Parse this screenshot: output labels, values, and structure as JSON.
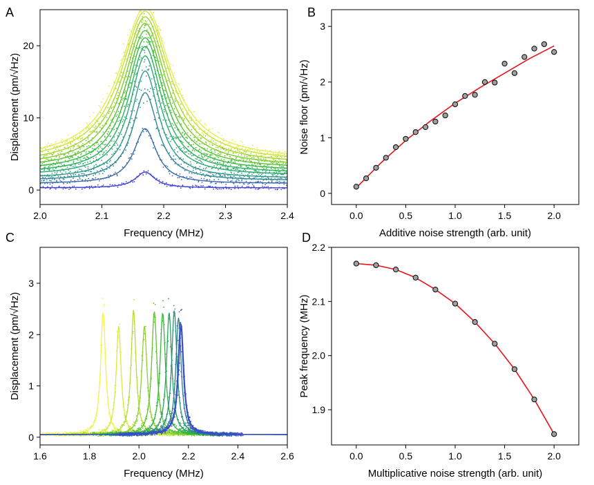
{
  "chart_data": [
    {
      "panel": "A",
      "type": "line",
      "xlabel": "Frequency (MHz)",
      "ylabel": "Displacement (pm/√Hz)",
      "xlim": [
        2.0,
        2.4
      ],
      "ylim": [
        -2,
        25
      ],
      "xticks": [
        2.0,
        2.1,
        2.2,
        2.3,
        2.4
      ],
      "yticks": [
        0,
        10,
        20
      ],
      "center": 2.17,
      "series": [
        {
          "name": "s1",
          "base": 0.3,
          "peak": 2.2,
          "width": 0.019,
          "color": "#3f3fd6"
        },
        {
          "name": "s2",
          "base": 0.9,
          "peak": 7.6,
          "width": 0.022,
          "color": "#3a6aa8"
        },
        {
          "name": "s3",
          "base": 1.3,
          "peak": 12.2,
          "width": 0.025,
          "color": "#33859a"
        },
        {
          "name": "s4",
          "base": 1.6,
          "peak": 14.9,
          "width": 0.027,
          "color": "#2e9a8a"
        },
        {
          "name": "s5",
          "base": 2.0,
          "peak": 16.6,
          "width": 0.03,
          "color": "#2aa874"
        },
        {
          "name": "s6",
          "base": 2.3,
          "peak": 17.6,
          "width": 0.033,
          "color": "#2bb15c"
        },
        {
          "name": "s7",
          "base": 2.6,
          "peak": 18.5,
          "width": 0.036,
          "color": "#39ba43"
        },
        {
          "name": "s8",
          "base": 2.9,
          "peak": 19.2,
          "width": 0.039,
          "color": "#5ac232"
        },
        {
          "name": "s9",
          "base": 3.2,
          "peak": 19.9,
          "width": 0.042,
          "color": "#7fcb2c"
        },
        {
          "name": "s10",
          "base": 3.5,
          "peak": 20.5,
          "width": 0.045,
          "color": "#a3d62c"
        },
        {
          "name": "s11",
          "base": 3.8,
          "peak": 21.0,
          "width": 0.048,
          "color": "#c8e33a"
        },
        {
          "name": "s12",
          "base": 4.1,
          "peak": 21.3,
          "width": 0.05,
          "color": "#e6ee55"
        }
      ]
    },
    {
      "panel": "B",
      "type": "scatter",
      "xlabel": "Additive noise strength (arb. unit)",
      "ylabel": "Noise floor (pm/√Hz)",
      "xlim": [
        -0.25,
        2.25
      ],
      "ylim": [
        -0.2,
        3.3
      ],
      "xticks": [
        0.0,
        0.5,
        1.0,
        1.5,
        2.0
      ],
      "yticks": [
        0,
        1,
        2,
        3
      ],
      "x": [
        0.0,
        0.1,
        0.2,
        0.3,
        0.4,
        0.5,
        0.6,
        0.7,
        0.8,
        0.9,
        1.0,
        1.1,
        1.2,
        1.3,
        1.4,
        1.5,
        1.6,
        1.7,
        1.8,
        1.9,
        2.0
      ],
      "y": [
        0.12,
        0.27,
        0.46,
        0.64,
        0.83,
        0.98,
        1.1,
        1.19,
        1.29,
        1.4,
        1.6,
        1.75,
        1.77,
        2.0,
        1.99,
        2.33,
        2.16,
        2.45,
        2.6,
        2.68,
        2.54
      ],
      "fit": {
        "x": [
          0.0,
          0.25,
          0.5,
          0.75,
          1.0,
          1.25,
          1.5,
          1.75,
          2.0
        ],
        "y": [
          0.1,
          0.55,
          0.95,
          1.3,
          1.62,
          1.9,
          2.16,
          2.42,
          2.65
        ],
        "color": "#e8121b"
      }
    },
    {
      "panel": "C",
      "type": "line",
      "xlabel": "Frequency (MHz)",
      "ylabel": "Displacement (pm/√Hz)",
      "xlim": [
        1.6,
        2.6
      ],
      "ylim": [
        -0.15,
        3.7
      ],
      "xticks": [
        1.6,
        1.8,
        2.0,
        2.2,
        2.4,
        2.6
      ],
      "yticks": [
        0,
        1,
        2,
        3
      ],
      "series": [
        {
          "name": "c1",
          "center": 1.855,
          "peak": 2.38,
          "width": 0.012,
          "color": "#f2f24a"
        },
        {
          "name": "c2",
          "center": 1.918,
          "peak": 2.12,
          "width": 0.012,
          "color": "#d8ea42"
        },
        {
          "name": "c3",
          "center": 1.978,
          "peak": 2.43,
          "width": 0.012,
          "color": "#b4de36"
        },
        {
          "name": "c4",
          "center": 2.022,
          "peak": 2.12,
          "width": 0.013,
          "color": "#8ed030"
        },
        {
          "name": "c5",
          "center": 2.062,
          "peak": 2.4,
          "width": 0.013,
          "color": "#5fc232"
        },
        {
          "name": "c6",
          "center": 2.096,
          "peak": 2.37,
          "width": 0.013,
          "color": "#37b440"
        },
        {
          "name": "c7",
          "center": 2.122,
          "peak": 2.38,
          "width": 0.013,
          "color": "#2aa35c"
        },
        {
          "name": "c8",
          "center": 2.143,
          "peak": 2.42,
          "width": 0.013,
          "color": "#2b9278"
        },
        {
          "name": "c9",
          "center": 2.16,
          "peak": 2.28,
          "width": 0.013,
          "color": "#2f7a96"
        },
        {
          "name": "c10",
          "center": 2.168,
          "peak": 2.2,
          "width": 0.013,
          "color": "#3560b8"
        },
        {
          "name": "c11",
          "center": 2.171,
          "peak": 2.15,
          "width": 0.013,
          "color": "#3b46d0"
        }
      ]
    },
    {
      "panel": "D",
      "type": "scatter",
      "xlabel": "Multiplicative noise strength (arb. unit)",
      "ylabel": "Peak frequency (MHz)",
      "xlim": [
        -0.25,
        2.25
      ],
      "ylim": [
        1.835,
        2.2
      ],
      "xticks": [
        0.0,
        0.5,
        1.0,
        1.5,
        2.0
      ],
      "yticks": [
        1.9,
        2.0,
        2.1,
        2.2
      ],
      "x": [
        0.0,
        0.2,
        0.4,
        0.6,
        0.8,
        1.0,
        1.2,
        1.4,
        1.6,
        1.8,
        2.0
      ],
      "y": [
        2.17,
        2.167,
        2.159,
        2.144,
        2.122,
        2.096,
        2.062,
        2.022,
        1.975,
        1.919,
        1.855
      ],
      "fit": {
        "x": [
          0.0,
          0.2,
          0.4,
          0.6,
          0.8,
          1.0,
          1.2,
          1.4,
          1.6,
          1.8,
          2.0
        ],
        "y": [
          2.17,
          2.167,
          2.159,
          2.144,
          2.122,
          2.096,
          2.062,
          2.022,
          1.975,
          1.919,
          1.855
        ],
        "color": "#e8121b"
      }
    }
  ]
}
